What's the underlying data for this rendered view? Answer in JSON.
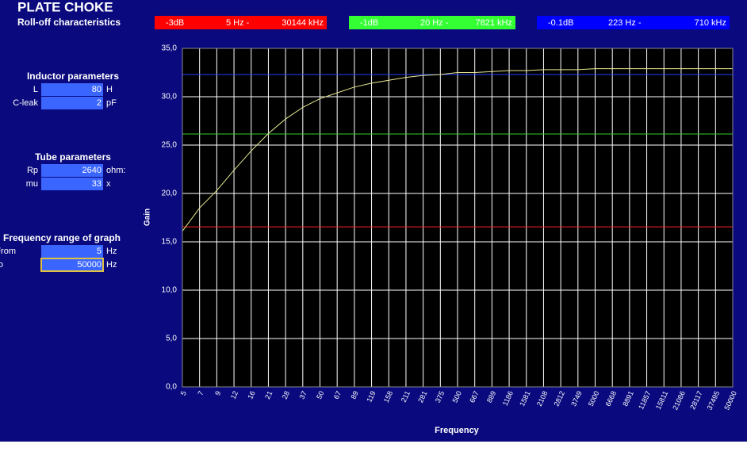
{
  "header": {
    "title": "PLATE CHOKE",
    "subtitle": "Roll-off characteristics"
  },
  "bands": [
    {
      "label": "-3dB",
      "low": "5 Hz -",
      "high": "30144 kHz",
      "color": "#ff0000",
      "text_color": "#ffffff"
    },
    {
      "label": "-1dB",
      "low": "20 Hz -",
      "high": "7821 kHz",
      "color": "#33ff33",
      "text_color": "#1a3a1a"
    },
    {
      "label": "-0.1dB",
      "low": "223 Hz -",
      "high": "710 kHz",
      "color": "#0000ff",
      "text_color": "#ffffff"
    }
  ],
  "sections": [
    {
      "title": "Inductor parameters",
      "rows": [
        {
          "label": "L",
          "value": 80,
          "unit": "H"
        },
        {
          "label": "C-leak",
          "value": 2,
          "unit": "pF"
        }
      ]
    },
    {
      "title": "Tube parameters",
      "rows": [
        {
          "label": "Rp",
          "value": 2640,
          "unit": "ohm:"
        },
        {
          "label": "mu",
          "value": 33,
          "unit": "x"
        }
      ]
    },
    {
      "title": "Frequency range of graph",
      "rows": [
        {
          "label": "From",
          "value": 5,
          "unit": "Hz"
        },
        {
          "label": "To",
          "value": 50000,
          "unit": "Hz"
        }
      ]
    }
  ],
  "chart_data": {
    "type": "line",
    "x_label": "Frequency",
    "y_label": "Gain",
    "categories": [
      "5",
      "7",
      "9",
      "12",
      "16",
      "21",
      "28",
      "37",
      "50",
      "67",
      "89",
      "119",
      "158",
      "211",
      "281",
      "375",
      "500",
      "667",
      "889",
      "1186",
      "1581",
      "2108",
      "2812",
      "3749",
      "5000",
      "6668",
      "8891",
      "11857",
      "15811",
      "21086",
      "28117",
      "37495",
      "50000"
    ],
    "series": [
      {
        "color": "#e8e890",
        "values": [
          16.1,
          18.5,
          20.3,
          22.4,
          24.4,
          26.2,
          27.7,
          28.9,
          29.8,
          30.4,
          31.0,
          31.4,
          31.7,
          32.0,
          32.2,
          32.3,
          32.5,
          32.5,
          32.6,
          32.7,
          32.7,
          32.8,
          32.8,
          32.8,
          32.9,
          32.9,
          32.9,
          32.9,
          32.9,
          32.9,
          32.9,
          32.9,
          32.9
        ]
      }
    ],
    "reference_lines": [
      {
        "value": 16.55,
        "color": "#ff2020"
      },
      {
        "value": 26.15,
        "color": "#33cc33"
      },
      {
        "value": 32.3,
        "color": "#2040ff"
      }
    ],
    "ylim": [
      0,
      35
    ],
    "yticks": [
      {
        "value": 0,
        "label": "0,0"
      },
      {
        "value": 5,
        "label": "5,0"
      },
      {
        "value": 10,
        "label": "10,0"
      },
      {
        "value": 15,
        "label": "15,0"
      },
      {
        "value": 20,
        "label": "20,0"
      },
      {
        "value": 25,
        "label": "25,0"
      },
      {
        "value": 30,
        "label": "30,0"
      },
      {
        "value": 35,
        "label": "35,0"
      }
    ],
    "grid": true
  }
}
